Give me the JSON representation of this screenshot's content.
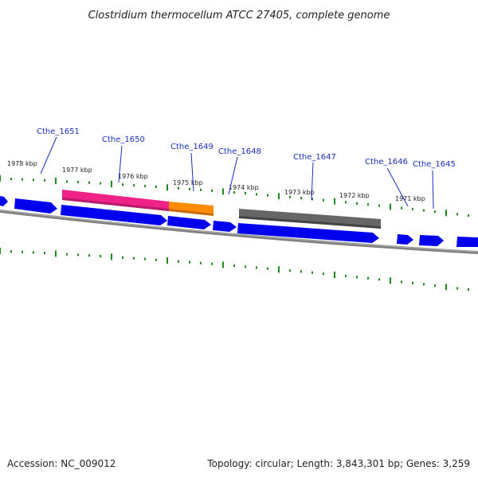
{
  "title": "Clostridium thermocellum ATCC 27405, complete genome",
  "footer": {
    "accession": "Accession: NC_009012",
    "summary": "Topology: circular; Length: 3,843,301 bp; Genes: 3,259"
  },
  "scale_labels": [
    "1978 kbp",
    "1977 kbp",
    "1976 kbp",
    "1975 kbp",
    "1974 kbp",
    "1973 kbp",
    "1972 kbp",
    "1971 kbp"
  ],
  "gene_labels": [
    "Cthe_1651",
    "Cthe_1650",
    "Cthe_1649",
    "Cthe_1648",
    "Cthe_1647",
    "Cthe_1646",
    "Cthe_1645"
  ],
  "colors": {
    "gene_arrow": "#0000ee",
    "backbone": "#808080",
    "ticks": "#1f8a1f",
    "highlight_1650": "#ee2288",
    "highlight_1649": "#ff8c00",
    "highlight_1647": "#666666",
    "label": "#1a2fbf"
  }
}
